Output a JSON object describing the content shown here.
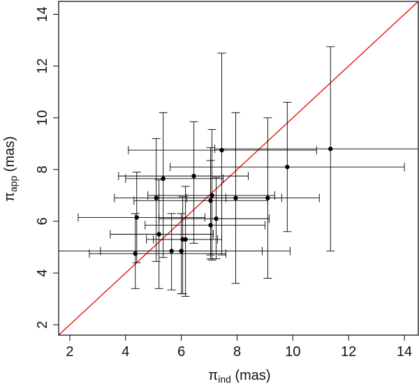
{
  "chart_data": {
    "type": "scatter",
    "title": "",
    "xlabel": {
      "symbol": "π",
      "subscript": "ind",
      "unit": "(mas)"
    },
    "ylabel": {
      "symbol": "π",
      "subscript": "app",
      "unit": "(mas)"
    },
    "xlim": [
      1.6,
      14.5
    ],
    "ylim": [
      1.6,
      14.5
    ],
    "xticks": [
      2,
      4,
      6,
      8,
      10,
      12,
      14
    ],
    "yticks": [
      2,
      4,
      6,
      8,
      10,
      12,
      14
    ],
    "xtick_labels": [
      "2",
      "4",
      "6",
      "8",
      "10",
      "12",
      "14"
    ],
    "ytick_labels": [
      "2",
      "4",
      "6",
      "8",
      "10",
      "12",
      "14"
    ],
    "reference_line": {
      "label": "y = x",
      "color": "#e8140c"
    },
    "colors": {
      "points": "#000000",
      "errorbars": "#000000",
      "axes": "#000000"
    },
    "points": [
      {
        "x": 7.45,
        "y": 8.75,
        "xerr": [
          4.1,
          10.85
        ],
        "yerr": [
          4.7,
          12.5
        ]
      },
      {
        "x": 11.35,
        "y": 8.8,
        "xerr": [
          7.2,
          14.6
        ],
        "yerr": [
          4.85,
          12.75
        ]
      },
      {
        "x": 9.8,
        "y": 8.1,
        "xerr": [
          5.6,
          14.0
        ],
        "yerr": [
          5.6,
          10.6
        ]
      },
      {
        "x": 6.45,
        "y": 7.75,
        "xerr": [
          3.75,
          8.4
        ],
        "yerr": [
          5.15,
          9.85
        ]
      },
      {
        "x": 5.35,
        "y": 7.65,
        "xerr": [
          4.0,
          7.5
        ],
        "yerr": [
          4.6,
          10.2
        ]
      },
      {
        "x": 7.1,
        "y": 7.0,
        "xerr": [
          4.8,
          9.35
        ],
        "yerr": [
          4.5,
          9.55
        ]
      },
      {
        "x": 5.1,
        "y": 6.9,
        "xerr": [
          3.6,
          7.6
        ],
        "yerr": [
          4.45,
          9.2
        ]
      },
      {
        "x": 7.95,
        "y": 6.9,
        "xerr": [
          5.2,
          10.95
        ],
        "yerr": [
          3.6,
          10.2
        ]
      },
      {
        "x": 9.1,
        "y": 6.9,
        "xerr": [
          6.2,
          9.6
        ],
        "yerr": [
          3.8,
          10.0
        ]
      },
      {
        "x": 7.05,
        "y": 6.8,
        "xerr": [
          4.3,
          9.1
        ],
        "yerr": [
          4.7,
          8.85
        ]
      },
      {
        "x": 4.4,
        "y": 6.15,
        "xerr": [
          2.3,
          6.85
        ],
        "yerr": [
          4.4,
          7.9
        ]
      },
      {
        "x": 7.25,
        "y": 6.1,
        "xerr": [
          5.2,
          9.15
        ],
        "yerr": [
          4.55,
          7.7
        ]
      },
      {
        "x": 7.05,
        "y": 5.85,
        "xerr": [
          4.7,
          9.0
        ],
        "yerr": [
          4.55,
          8.35
        ]
      },
      {
        "x": 5.2,
        "y": 5.5,
        "xerr": [
          3.45,
          7.15
        ],
        "yerr": [
          3.4,
          7.6
        ]
      },
      {
        "x": 6.15,
        "y": 5.3,
        "xerr": [
          4.75,
          7.45
        ],
        "yerr": [
          3.1,
          7.35
        ]
      },
      {
        "x": 6.05,
        "y": 5.3,
        "xerr": [
          5.0,
          7.3
        ],
        "yerr": [
          3.2,
          6.95
        ]
      },
      {
        "x": 5.65,
        "y": 4.85,
        "xerr": [
          1.6,
          8.9
        ],
        "yerr": [
          3.35,
          6.3
        ]
      },
      {
        "x": 6.0,
        "y": 4.85,
        "xerr": [
          3.1,
          9.9
        ],
        "yerr": [
          3.2,
          6.3
        ]
      },
      {
        "x": 4.35,
        "y": 4.75,
        "xerr": [
          2.7,
          7.6
        ],
        "yerr": [
          3.4,
          6.3
        ]
      }
    ]
  }
}
